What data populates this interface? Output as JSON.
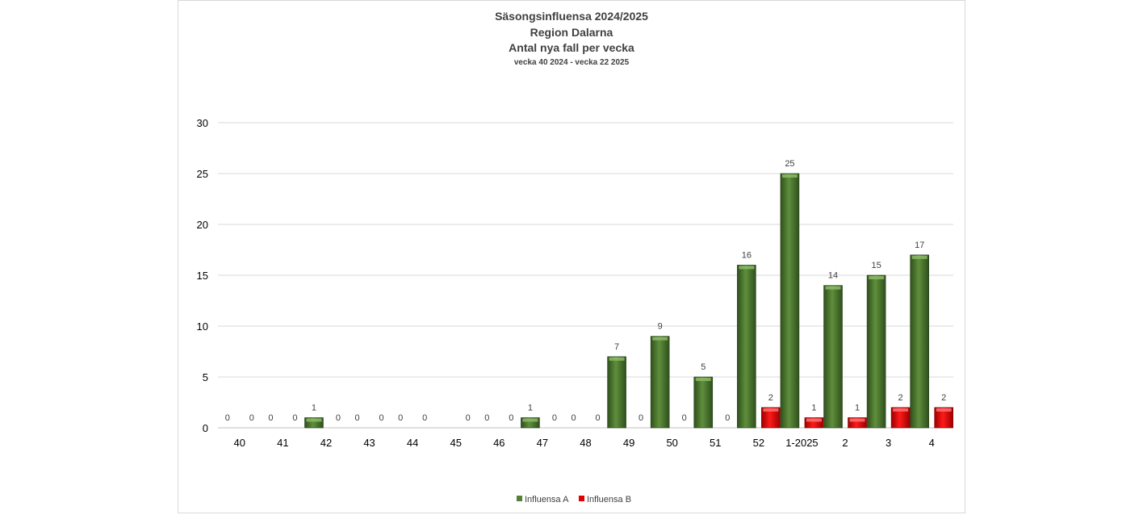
{
  "chart_data": {
    "type": "bar",
    "title": "Säsongsinfluensa 2024/2025",
    "subtitle_lines": [
      "Region Dalarna",
      "Antal nya fall per vecka",
      "vecka 40 2024 - vecka 22 2025"
    ],
    "xlabel": "",
    "ylabel": "",
    "ylim": [
      0,
      30
    ],
    "yticks": [
      0,
      5,
      10,
      15,
      20,
      25,
      30
    ],
    "grid": true,
    "legend_position": "bottom",
    "categories": [
      "40",
      "41",
      "42",
      "43",
      "44",
      "45",
      "46",
      "47",
      "48",
      "49",
      "50",
      "51",
      "52",
      "1-2025",
      "2",
      "3",
      "4"
    ],
    "series": [
      {
        "name": "Influensa A",
        "color": "#548235",
        "values": [
          0,
          0,
          1,
          0,
          0,
          null,
          0,
          1,
          0,
          7,
          9,
          5,
          16,
          25,
          14,
          15,
          17
        ]
      },
      {
        "name": "Influensa B",
        "color": "#e00000",
        "values": [
          0,
          0,
          0,
          0,
          0,
          0,
          0,
          0,
          0,
          0,
          0,
          0,
          2,
          1,
          1,
          2,
          2
        ]
      }
    ]
  }
}
